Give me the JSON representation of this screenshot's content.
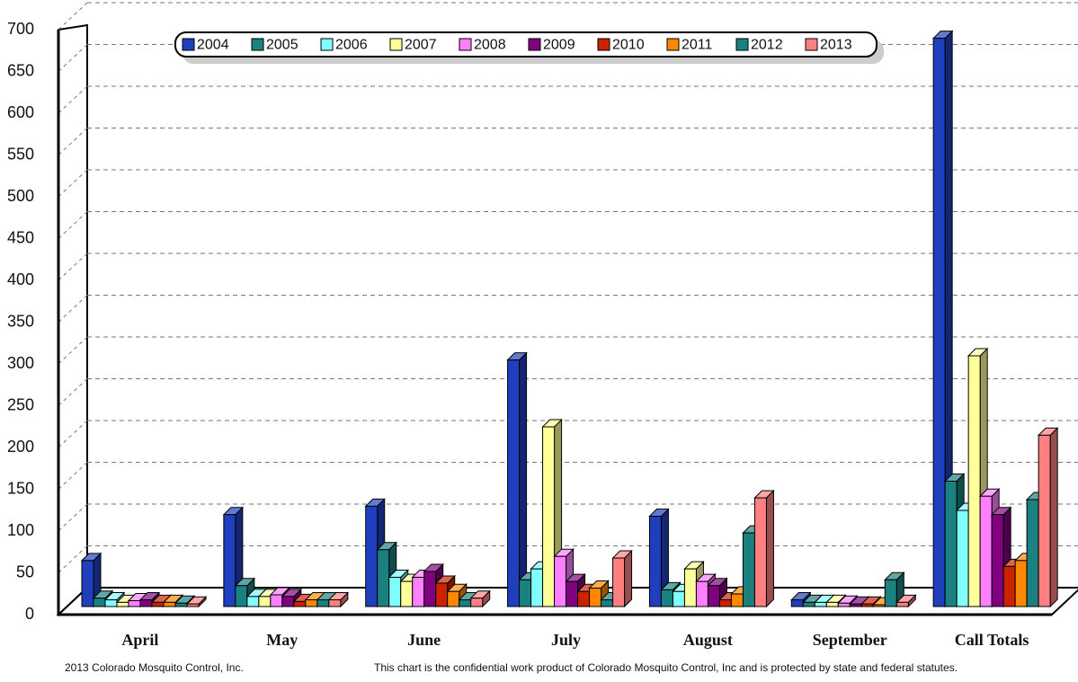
{
  "chart_data": {
    "type": "bar3d",
    "categories": [
      "April",
      "May",
      "June",
      "July",
      "August",
      "September",
      "Call Totals"
    ],
    "series": [
      {
        "name": "2004",
        "color": "#1f3fbf",
        "values": [
          55,
          110,
          120,
          295,
          108,
          8,
          680
        ]
      },
      {
        "name": "2005",
        "color": "#1a8080",
        "values": [
          10,
          25,
          68,
          32,
          20,
          5,
          150
        ]
      },
      {
        "name": "2006",
        "color": "#80ffff",
        "values": [
          8,
          12,
          35,
          45,
          18,
          5,
          115
        ]
      },
      {
        "name": "2007",
        "color": "#ffff99",
        "values": [
          5,
          12,
          30,
          215,
          45,
          5,
          300
        ]
      },
      {
        "name": "2008",
        "color": "#ff80ff",
        "values": [
          7,
          14,
          35,
          60,
          30,
          4,
          132
        ]
      },
      {
        "name": "2009",
        "color": "#800080",
        "values": [
          8,
          12,
          42,
          30,
          25,
          3,
          110
        ]
      },
      {
        "name": "2010",
        "color": "#cc2200",
        "values": [
          5,
          6,
          28,
          18,
          8,
          3,
          48
        ]
      },
      {
        "name": "2011",
        "color": "#ff8800",
        "values": [
          5,
          8,
          18,
          22,
          15,
          2,
          55
        ]
      },
      {
        "name": "2012",
        "color": "#1a8080",
        "values": [
          4,
          8,
          8,
          8,
          88,
          32,
          128
        ]
      },
      {
        "name": "2013",
        "color": "#ff8080",
        "values": [
          3,
          8,
          10,
          58,
          130,
          5,
          205
        ]
      }
    ],
    "ylim": [
      0,
      700
    ],
    "yticks": [
      0,
      50,
      100,
      150,
      200,
      250,
      300,
      350,
      400,
      450,
      500,
      550,
      600,
      650,
      700
    ],
    "grid": true,
    "legend": "top",
    "credit": "2013 Colorado Mosquito Control, Inc.",
    "disclaimer": "This chart is the confidential work product of Colorado Mosquito Control, Inc and is protected by state and federal statutes."
  }
}
